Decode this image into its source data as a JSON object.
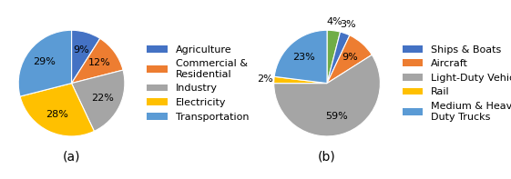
{
  "chart_data": [
    {
      "type": "pie",
      "title": "(a)",
      "categories": [
        "Agriculture",
        "Commercial &\nResidential",
        "Industry",
        "Electricity",
        "Transportation"
      ],
      "values": [
        9,
        12,
        22,
        28,
        29
      ],
      "value_labels": [
        "9%",
        "12%",
        "22%",
        "28%",
        "29%"
      ],
      "colors": [
        "#4472C4",
        "#ED7D31",
        "#A5A5A5",
        "#FFC000",
        "#5B9BD5"
      ],
      "data_labels": true,
      "legend": "center left"
    },
    {
      "type": "pie",
      "title": "(b)",
      "categories": [
        null,
        "Ships & Boats",
        "Aircraft",
        "Light-Duty Vehicles",
        "Rail",
        "Medium & Heavy\nDuty Trucks"
      ],
      "values": [
        4,
        3,
        9,
        59,
        2,
        23
      ],
      "value_labels": [
        "4%",
        "3%",
        "9%",
        "59%",
        "2%",
        "23%"
      ],
      "colors": [
        "#70AD47",
        "#4472C4",
        "#ED7D31",
        "#A5A5A5",
        "#FFC000",
        "#5B9BD5"
      ],
      "data_labels": true,
      "legend": "center left"
    }
  ]
}
